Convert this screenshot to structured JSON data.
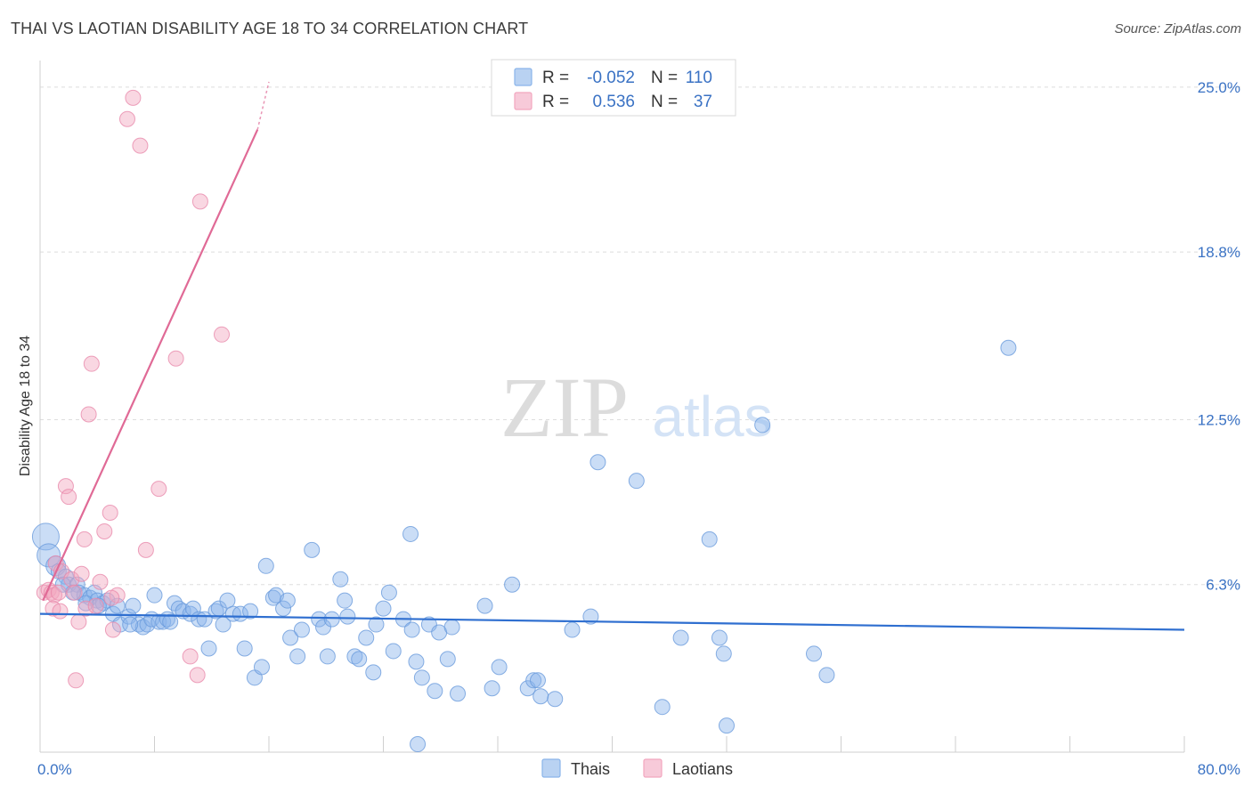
{
  "chart_data": {
    "type": "scatter",
    "title": "THAI VS LAOTIAN DISABILITY AGE 18 TO 34 CORRELATION CHART",
    "source": "Source: ZipAtlas.com",
    "ylabel": "Disability Age 18 to 34",
    "xlim": [
      0,
      80
    ],
    "ylim": [
      0,
      26
    ],
    "x_labels": [
      "0.0%",
      "80.0%"
    ],
    "y_ticks": [
      {
        "value": 6.3,
        "label": "6.3%"
      },
      {
        "value": 12.5,
        "label": "12.5%"
      },
      {
        "value": 18.8,
        "label": "18.8%"
      },
      {
        "value": 25.0,
        "label": "25.0%"
      }
    ],
    "watermark": {
      "zip": "ZIP",
      "atlas": "atlas"
    },
    "legend": {
      "r_label": "R =",
      "n_label": "N =",
      "rows": [
        {
          "name": "Thais",
          "r": "-0.052",
          "n": "110",
          "color": "#8ab4ea"
        },
        {
          "name": "Laotians",
          "r": "0.536",
          "n": "37",
          "color": "#f2a6bf"
        }
      ]
    },
    "series": [
      {
        "name": "Thais",
        "color": "#8ab4ea",
        "edge": "#6a9bdc",
        "trend": {
          "x1": 0,
          "y1": 5.2,
          "x2": 80,
          "y2": 4.6,
          "color": "#2f6fd0"
        },
        "points": [
          [
            0.4,
            8.1
          ],
          [
            0.6,
            7.4
          ],
          [
            1.1,
            7.0
          ],
          [
            1.3,
            6.8
          ],
          [
            1.8,
            6.6
          ],
          [
            2.0,
            6.3
          ],
          [
            2.6,
            6.3
          ],
          [
            2.7,
            6.0
          ],
          [
            3.1,
            5.9
          ],
          [
            3.5,
            5.8
          ],
          [
            3.8,
            6.0
          ],
          [
            4.0,
            5.7
          ],
          [
            4.4,
            5.6
          ],
          [
            4.7,
            5.7
          ],
          [
            5.1,
            5.2
          ],
          [
            5.4,
            5.5
          ],
          [
            5.6,
            4.8
          ],
          [
            6.2,
            5.1
          ],
          [
            6.5,
            5.5
          ],
          [
            6.9,
            4.8
          ],
          [
            7.2,
            4.7
          ],
          [
            7.5,
            4.8
          ],
          [
            7.8,
            5.0
          ],
          [
            8.0,
            5.9
          ],
          [
            8.3,
            4.9
          ],
          [
            8.6,
            4.9
          ],
          [
            8.9,
            5.0
          ],
          [
            9.4,
            5.6
          ],
          [
            9.7,
            5.4
          ],
          [
            10.0,
            5.3
          ],
          [
            10.5,
            5.2
          ],
          [
            10.7,
            5.4
          ],
          [
            11.1,
            5.0
          ],
          [
            11.5,
            5.0
          ],
          [
            11.8,
            3.9
          ],
          [
            12.3,
            5.3
          ],
          [
            12.5,
            5.4
          ],
          [
            12.8,
            4.8
          ],
          [
            13.1,
            5.7
          ],
          [
            13.5,
            5.2
          ],
          [
            14.0,
            5.2
          ],
          [
            14.3,
            3.9
          ],
          [
            14.7,
            5.3
          ],
          [
            15.0,
            2.8
          ],
          [
            15.5,
            3.2
          ],
          [
            15.8,
            7.0
          ],
          [
            16.3,
            5.8
          ],
          [
            16.5,
            5.9
          ],
          [
            17.0,
            5.4
          ],
          [
            17.3,
            5.7
          ],
          [
            17.5,
            4.3
          ],
          [
            18.0,
            3.6
          ],
          [
            18.3,
            4.6
          ],
          [
            19.0,
            7.6
          ],
          [
            19.5,
            5.0
          ],
          [
            19.8,
            4.7
          ],
          [
            20.1,
            3.6
          ],
          [
            20.4,
            5.0
          ],
          [
            21.0,
            6.5
          ],
          [
            21.3,
            5.7
          ],
          [
            21.5,
            5.1
          ],
          [
            22.0,
            3.6
          ],
          [
            22.3,
            3.5
          ],
          [
            22.8,
            4.3
          ],
          [
            23.3,
            3.0
          ],
          [
            23.5,
            4.8
          ],
          [
            24.0,
            5.4
          ],
          [
            24.4,
            6.0
          ],
          [
            24.7,
            3.8
          ],
          [
            25.4,
            5.0
          ],
          [
            25.9,
            8.2
          ],
          [
            26.0,
            4.6
          ],
          [
            26.3,
            3.4
          ],
          [
            26.7,
            2.8
          ],
          [
            27.2,
            4.8
          ],
          [
            27.6,
            2.3
          ],
          [
            27.9,
            4.5
          ],
          [
            28.5,
            3.5
          ],
          [
            28.8,
            4.7
          ],
          [
            29.2,
            2.2
          ],
          [
            31.1,
            5.5
          ],
          [
            31.6,
            2.4
          ],
          [
            32.1,
            3.2
          ],
          [
            33.0,
            6.3
          ],
          [
            34.1,
            2.4
          ],
          [
            34.5,
            2.7
          ],
          [
            34.8,
            2.7
          ],
          [
            35.0,
            2.1
          ],
          [
            36.0,
            2.0
          ],
          [
            37.2,
            4.6
          ],
          [
            38.5,
            5.1
          ],
          [
            39.0,
            10.9
          ],
          [
            41.7,
            10.2
          ],
          [
            43.5,
            1.7
          ],
          [
            44.8,
            4.3
          ],
          [
            46.8,
            8.0
          ],
          [
            47.5,
            4.3
          ],
          [
            47.8,
            3.7
          ],
          [
            48.0,
            1.0
          ],
          [
            50.5,
            12.3
          ],
          [
            54.1,
            3.7
          ],
          [
            55.0,
            2.9
          ],
          [
            67.7,
            15.2
          ],
          [
            26.4,
            0.3
          ],
          [
            9.1,
            4.9
          ],
          [
            6.3,
            4.8
          ],
          [
            4.1,
            5.5
          ],
          [
            2.3,
            6.0
          ],
          [
            1.6,
            6.3
          ],
          [
            3.2,
            5.6
          ]
        ]
      },
      {
        "name": "Laotians",
        "color": "#f2a6bf",
        "edge": "#e88aab",
        "trend": {
          "x1": 0.2,
          "y1": 5.7,
          "x2": 15.2,
          "y2": 23.4,
          "color": "#e06a96"
        },
        "trend_ext": {
          "x1": 15.2,
          "y1": 23.4,
          "x2": 16.0,
          "y2": 25.2
        },
        "points": [
          [
            0.3,
            6.0
          ],
          [
            0.6,
            6.1
          ],
          [
            0.8,
            6.0
          ],
          [
            1.0,
            5.9
          ],
          [
            1.1,
            7.1
          ],
          [
            1.3,
            6.0
          ],
          [
            1.5,
            6.8
          ],
          [
            0.9,
            5.4
          ],
          [
            1.4,
            5.3
          ],
          [
            1.8,
            10.0
          ],
          [
            2.0,
            9.6
          ],
          [
            2.2,
            6.5
          ],
          [
            2.4,
            6.0
          ],
          [
            2.7,
            4.9
          ],
          [
            2.9,
            6.7
          ],
          [
            3.1,
            8.0
          ],
          [
            3.4,
            12.7
          ],
          [
            3.6,
            14.6
          ],
          [
            3.2,
            5.4
          ],
          [
            3.9,
            5.5
          ],
          [
            4.2,
            6.4
          ],
          [
            4.5,
            8.3
          ],
          [
            4.9,
            9.0
          ],
          [
            5.1,
            4.6
          ],
          [
            5.4,
            5.9
          ],
          [
            5.0,
            5.8
          ],
          [
            6.1,
            23.8
          ],
          [
            6.5,
            24.6
          ],
          [
            7.0,
            22.8
          ],
          [
            7.4,
            7.6
          ],
          [
            8.3,
            9.9
          ],
          [
            9.5,
            14.8
          ],
          [
            10.5,
            3.6
          ],
          [
            11.2,
            20.7
          ],
          [
            11.0,
            2.9
          ],
          [
            12.7,
            15.7
          ],
          [
            2.5,
            2.7
          ]
        ]
      }
    ]
  }
}
